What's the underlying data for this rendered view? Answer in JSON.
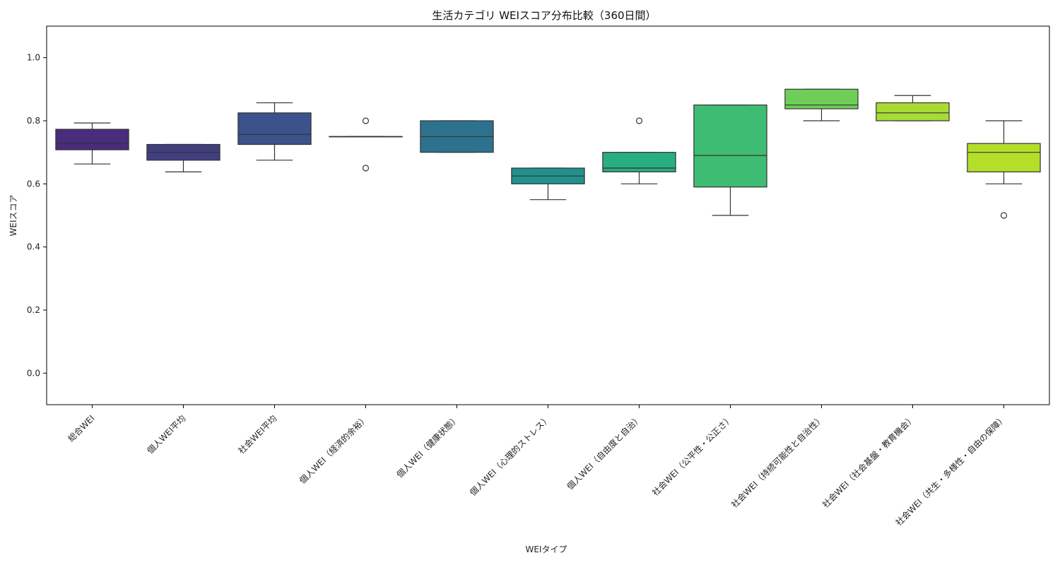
{
  "chart_data": {
    "type": "box",
    "title": "生活カテゴリ WEIスコア分布比較（360日間）",
    "xlabel": "WEIタイプ",
    "ylabel": "WEIスコア",
    "ylim": [
      -0.1,
      1.1
    ],
    "yticks": [
      "0.0",
      "0.2",
      "0.4",
      "0.6",
      "0.8",
      "1.0"
    ],
    "grid": false,
    "legend": "none",
    "categories": [
      "総合WEI",
      "個人WEI平均",
      "社会WEI平均",
      "個人WEI（経済的余裕）",
      "個人WEI（健康状態）",
      "個人WEI（心理的ストレス）",
      "個人WEI（自由度と自治）",
      "社会WEI（公平性・公正さ）",
      "社会WEI（持続可能性と自治性）",
      "社会WEI（社会基盤・教育機会）",
      "社会WEI（共生・多様性・自由の保障）"
    ],
    "boxes": [
      {
        "min": 0.663,
        "q1": 0.708,
        "median": 0.728,
        "q3": 0.773,
        "max": 0.793,
        "outliers": [],
        "color": "#472d7b"
      },
      {
        "min": 0.638,
        "q1": 0.675,
        "median": 0.7,
        "q3": 0.725,
        "max": 0.725,
        "outliers": [],
        "color": "#413f80"
      },
      {
        "min": 0.675,
        "q1": 0.725,
        "median": 0.757,
        "q3": 0.825,
        "max": 0.857,
        "outliers": [],
        "color": "#3b528b"
      },
      {
        "min": 0.75,
        "q1": 0.75,
        "median": 0.75,
        "q3": 0.75,
        "max": 0.75,
        "outliers": [
          0.8,
          0.65
        ],
        "color": "#31688e"
      },
      {
        "min": 0.7,
        "q1": 0.7,
        "median": 0.75,
        "q3": 0.8,
        "max": 0.8,
        "outliers": [],
        "color": "#2c728e"
      },
      {
        "min": 0.55,
        "q1": 0.6,
        "median": 0.625,
        "q3": 0.65,
        "max": 0.65,
        "outliers": [],
        "color": "#21918c"
      },
      {
        "min": 0.6,
        "q1": 0.638,
        "median": 0.65,
        "q3": 0.7,
        "max": 0.7,
        "outliers": [
          0.8
        ],
        "color": "#28ae80"
      },
      {
        "min": 0.5,
        "q1": 0.59,
        "median": 0.69,
        "q3": 0.85,
        "max": 0.85,
        "outliers": [],
        "color": "#3fbc73"
      },
      {
        "min": 0.8,
        "q1": 0.838,
        "median": 0.85,
        "q3": 0.9,
        "max": 0.9,
        "outliers": [],
        "color": "#6ece58"
      },
      {
        "min": 0.8,
        "q1": 0.8,
        "median": 0.825,
        "q3": 0.857,
        "max": 0.88,
        "outliers": [],
        "color": "#a8db34"
      },
      {
        "min": 0.6,
        "q1": 0.638,
        "median": 0.7,
        "q3": 0.728,
        "max": 0.8,
        "outliers": [
          0.5
        ],
        "color": "#b5de2b"
      }
    ]
  }
}
